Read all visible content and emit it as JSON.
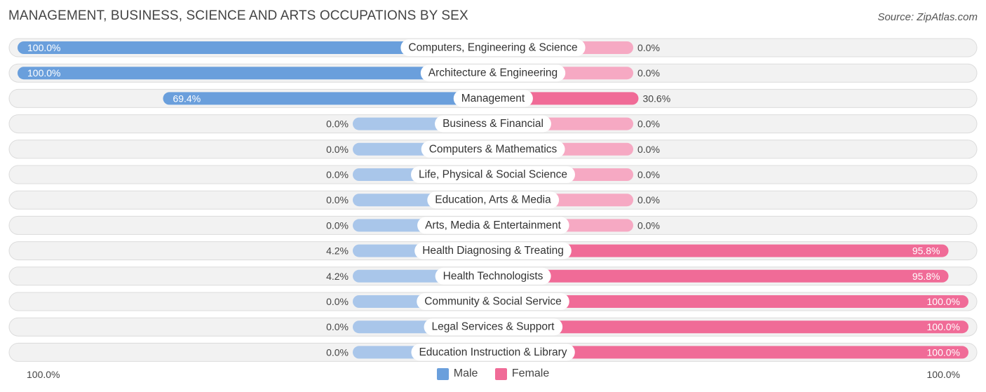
{
  "header": {
    "title": "MANAGEMENT, BUSINESS, SCIENCE AND ARTS OCCUPATIONS BY SEX",
    "source": "Source: ZipAtlas.com"
  },
  "axis": {
    "left_label": "100.0%",
    "right_label": "100.0%"
  },
  "legend": {
    "male_label": "Male",
    "female_label": "Female"
  },
  "colors": {
    "male_strong": "#6a9fdc",
    "male_light": "#a9c6ea",
    "female_strong": "#f06b97",
    "female_light": "#f6a9c3",
    "row_bg": "#f2f2f2",
    "row_border": "#dcdcdc"
  },
  "chart_data": {
    "type": "bar",
    "orientation": "diverging-horizontal",
    "title": "MANAGEMENT, BUSINESS, SCIENCE AND ARTS OCCUPATIONS BY SEX",
    "xlim": [
      -100,
      100
    ],
    "legend_position": "bottom-center",
    "categories": [
      "Computers, Engineering & Science",
      "Architecture & Engineering",
      "Management",
      "Business & Financial",
      "Computers & Mathematics",
      "Life, Physical & Social Science",
      "Education, Arts & Media",
      "Arts, Media & Entertainment",
      "Health Diagnosing & Treating",
      "Health Technologists",
      "Community & Social Service",
      "Legal Services & Support",
      "Education Instruction & Library"
    ],
    "series": [
      {
        "name": "Male",
        "values": [
          100.0,
          100.0,
          69.4,
          0.0,
          0.0,
          0.0,
          0.0,
          0.0,
          4.2,
          4.2,
          0.0,
          0.0,
          0.0
        ],
        "labels": [
          "100.0%",
          "100.0%",
          "69.4%",
          "0.0%",
          "0.0%",
          "0.0%",
          "0.0%",
          "0.0%",
          "4.2%",
          "4.2%",
          "0.0%",
          "0.0%",
          "0.0%"
        ]
      },
      {
        "name": "Female",
        "values": [
          0.0,
          0.0,
          30.6,
          0.0,
          0.0,
          0.0,
          0.0,
          0.0,
          95.8,
          95.8,
          100.0,
          100.0,
          100.0
        ],
        "labels": [
          "0.0%",
          "0.0%",
          "30.6%",
          "0.0%",
          "0.0%",
          "0.0%",
          "0.0%",
          "0.0%",
          "95.8%",
          "95.8%",
          "100.0%",
          "100.0%",
          "100.0%"
        ]
      }
    ]
  }
}
